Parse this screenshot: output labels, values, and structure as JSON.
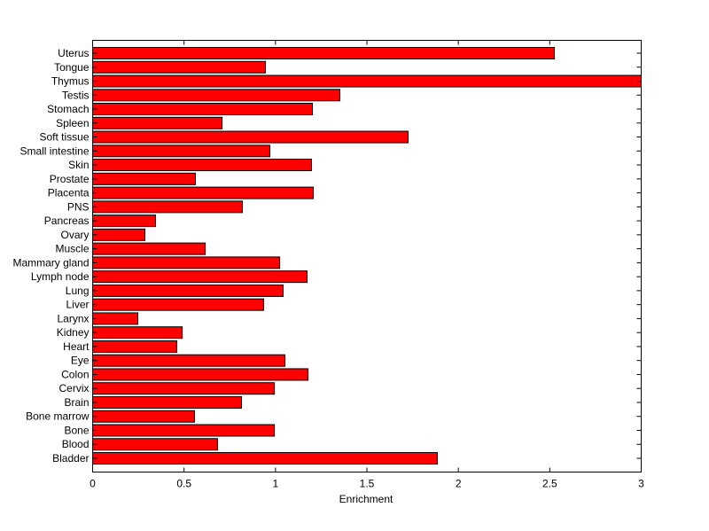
{
  "chart_data": {
    "type": "bar",
    "orientation": "horizontal",
    "title": "",
    "xlabel": "Enrichment",
    "ylabel": "",
    "xlim": [
      0,
      3
    ],
    "xticks": [
      "0",
      "0.5",
      "1",
      "1.5",
      "2",
      "2.5",
      "3"
    ],
    "grid": false,
    "bar_color": "#ff0000",
    "edge_color": "#000000",
    "categories": [
      "Bladder",
      "Blood",
      "Bone",
      "Bone marrow",
      "Brain",
      "Cervix",
      "Colon",
      "Eye",
      "Heart",
      "Kidney",
      "Larynx",
      "Liver",
      "Lung",
      "Lymph node",
      "Mammary gland",
      "Muscle",
      "Ovary",
      "Pancreas",
      "PNS",
      "Placenta",
      "Prostate",
      "Skin",
      "Small intestine",
      "Soft tissue",
      "Spleen",
      "Stomach",
      "Testis",
      "Thymus",
      "Tongue",
      "Uterus"
    ],
    "values": [
      1.885,
      0.683,
      0.994,
      0.557,
      0.814,
      0.994,
      1.178,
      1.052,
      0.46,
      0.49,
      0.247,
      0.935,
      1.042,
      1.173,
      1.023,
      0.616,
      0.286,
      0.344,
      0.819,
      1.207,
      0.562,
      1.197,
      0.969,
      1.725,
      0.708,
      1.202,
      1.352,
      3.0,
      0.945,
      2.525
    ]
  }
}
